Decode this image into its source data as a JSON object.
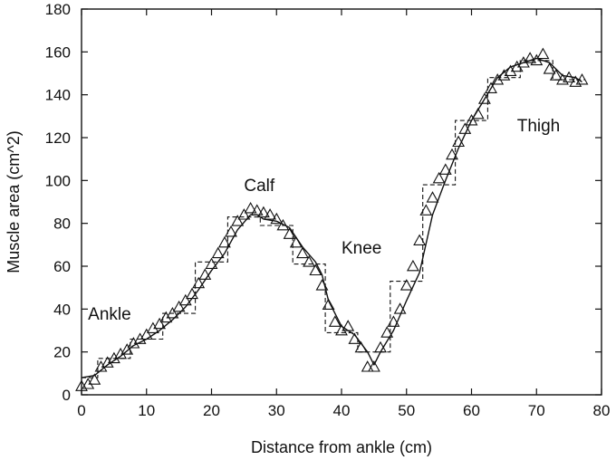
{
  "chart_data": {
    "type": "line",
    "title": "",
    "xlabel": "Distance from ankle (cm)",
    "ylabel": "Muscle area (cm^2)",
    "xlim": [
      0,
      80
    ],
    "ylim": [
      0,
      180
    ],
    "x_ticks": [
      0,
      10,
      20,
      30,
      40,
      50,
      60,
      70,
      80
    ],
    "y_ticks": [
      0,
      20,
      40,
      60,
      80,
      100,
      120,
      140,
      160,
      180
    ],
    "grid": false,
    "legend": "none",
    "annotations": [
      {
        "text": "Ankle",
        "x": 1,
        "y": 35
      },
      {
        "text": "Calf",
        "x": 25,
        "y": 95
      },
      {
        "text": "Knee",
        "x": 40,
        "y": 66
      },
      {
        "text": "Thigh",
        "x": 67,
        "y": 123
      }
    ],
    "series": [
      {
        "style": "triangles",
        "x": [
          0,
          1,
          2,
          3,
          4,
          5,
          6,
          7,
          8,
          9,
          10,
          11,
          12,
          13,
          14,
          15,
          16,
          17,
          18,
          19,
          20,
          21,
          22,
          23,
          24,
          25,
          26,
          27,
          28,
          29,
          30,
          31,
          32,
          33,
          34,
          35,
          36,
          37,
          38,
          39,
          40,
          41,
          42,
          43,
          44,
          45,
          46,
          47,
          48,
          49,
          50,
          51,
          52,
          53,
          54,
          55,
          56,
          57,
          58,
          59,
          60,
          61,
          62,
          63,
          64,
          65,
          66,
          67,
          68,
          69,
          70,
          71,
          72,
          73,
          74,
          75,
          76,
          77
        ],
        "values": [
          4,
          5,
          7,
          13,
          15,
          17,
          19,
          21,
          24,
          26,
          28,
          31,
          33,
          36,
          38,
          41,
          44,
          47,
          52,
          56,
          61,
          66,
          71,
          76,
          81,
          84,
          87,
          86,
          85,
          84,
          82,
          79,
          75,
          71,
          66,
          62,
          58,
          51,
          42,
          34,
          30,
          32,
          26,
          22,
          13,
          13,
          22,
          29,
          34,
          40,
          51,
          60,
          72,
          86,
          92,
          101,
          105,
          112,
          118,
          124,
          128,
          131,
          138,
          143,
          147,
          149,
          151,
          153,
          155,
          157,
          156,
          159,
          152,
          149,
          147,
          148,
          146,
          147
        ]
      },
      {
        "style": "solid",
        "x": [
          0,
          2,
          4,
          6,
          8,
          10,
          12,
          14,
          16,
          18,
          20,
          22,
          24,
          26,
          27,
          28,
          30,
          32,
          34,
          36,
          37,
          38,
          40,
          42,
          44,
          45,
          46,
          48,
          50,
          52,
          54,
          56,
          58,
          60,
          62,
          64,
          66,
          68,
          70,
          72,
          74,
          76,
          77
        ],
        "values": [
          8,
          9,
          14,
          18,
          23,
          26,
          30,
          35,
          41,
          49,
          58,
          66,
          77,
          84,
          84,
          82,
          81,
          78,
          69,
          62,
          56,
          44,
          32,
          28,
          20,
          14,
          20,
          30,
          44,
          57,
          84,
          100,
          115,
          128,
          138,
          148,
          153,
          155,
          157,
          155,
          149,
          148,
          146
        ]
      },
      {
        "style": "dashed",
        "x": [
          0,
          2.5,
          2.5,
          7.5,
          7.5,
          12.5,
          12.5,
          17.5,
          17.5,
          22.5,
          22.5,
          27.5,
          27.5,
          32.5,
          32.5,
          37.5,
          37.5,
          42.5,
          42.5,
          47.5,
          47.5,
          52.5,
          52.5,
          57.5,
          57.5,
          62.5,
          62.5,
          67.5,
          67.5,
          72.5,
          72.5,
          77.5
        ],
        "values": [
          8,
          8,
          17,
          17,
          26,
          26,
          38,
          38,
          62,
          62,
          83,
          83,
          79,
          79,
          61,
          61,
          29,
          29,
          20,
          20,
          53,
          53,
          98,
          98,
          128,
          128,
          148,
          148,
          156,
          156,
          147,
          147
        ]
      }
    ]
  }
}
